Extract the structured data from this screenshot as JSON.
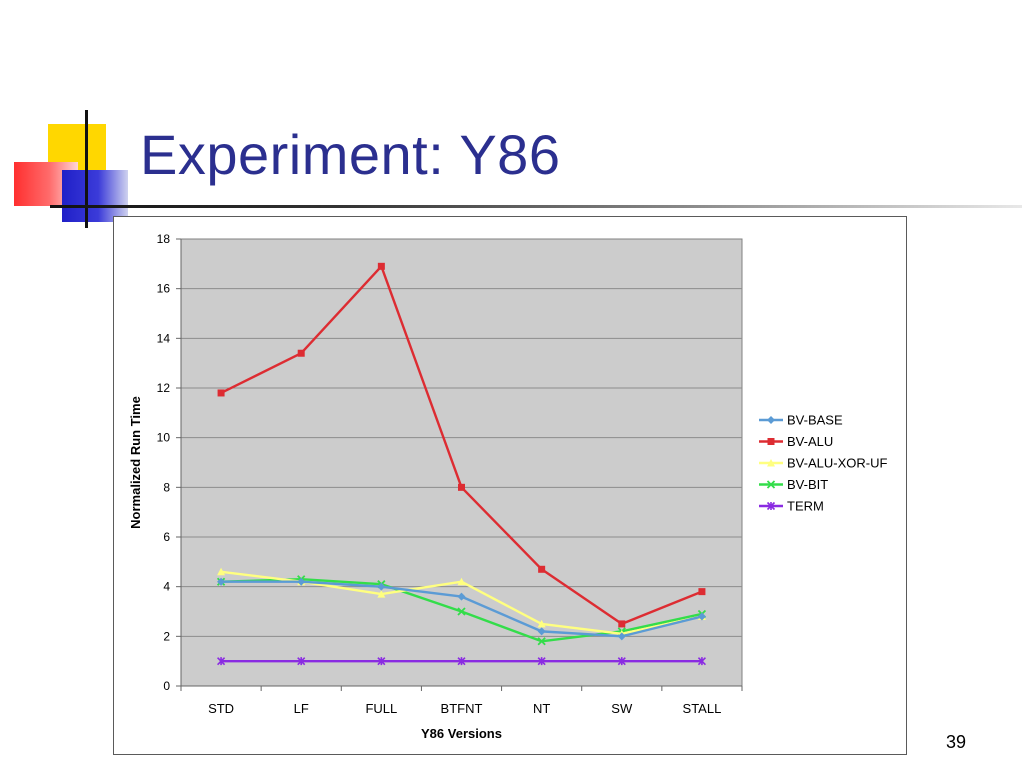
{
  "slide": {
    "title": "Experiment: Y86",
    "page_number": "39"
  },
  "chart_data": {
    "type": "line",
    "title": "",
    "xlabel": "Y86 Versions",
    "ylabel": "Normalized Run Time",
    "categories": [
      "STD",
      "LF",
      "FULL",
      "BTFNT",
      "NT",
      "SW",
      "STALL"
    ],
    "ylim": [
      0,
      18
    ],
    "yticks": [
      0,
      2,
      4,
      6,
      8,
      10,
      12,
      14,
      16,
      18
    ],
    "grid": true,
    "legend_position": "right",
    "plot_background": "#cccccc",
    "series": [
      {
        "name": "BV-BASE",
        "color": "#5b9bd5",
        "marker": "diamond",
        "values": [
          4.2,
          4.2,
          4.0,
          3.6,
          2.2,
          2.0,
          2.8
        ]
      },
      {
        "name": "BV-ALU",
        "color": "#dd2c32",
        "marker": "square",
        "values": [
          11.8,
          13.4,
          16.9,
          8.0,
          4.7,
          2.5,
          3.8
        ]
      },
      {
        "name": "BV-ALU-XOR-UF",
        "color": "#ffff80",
        "marker": "triangle",
        "values": [
          4.6,
          4.2,
          3.7,
          4.2,
          2.5,
          2.1,
          2.8
        ]
      },
      {
        "name": "BV-BIT",
        "color": "#33dd4a",
        "marker": "x",
        "values": [
          4.2,
          4.3,
          4.1,
          3.0,
          1.8,
          2.2,
          2.9
        ]
      },
      {
        "name": "TERM",
        "color": "#8a2be2",
        "marker": "star",
        "values": [
          1.0,
          1.0,
          1.0,
          1.0,
          1.0,
          1.0,
          1.0
        ]
      }
    ]
  }
}
